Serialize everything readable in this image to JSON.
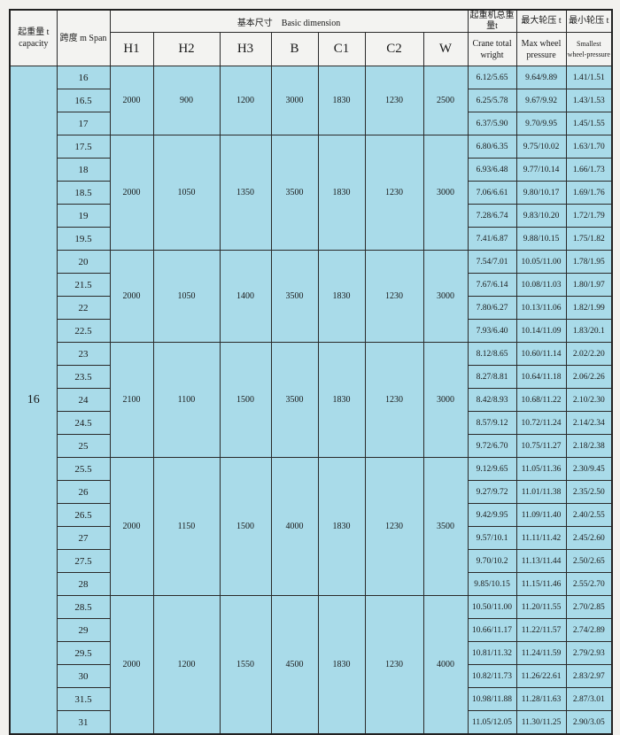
{
  "header": {
    "capacity": "起重量 t capacity",
    "span": "跨度 m Span",
    "basic_dimension": "基本尺寸　Basic dimension",
    "dims": [
      "H1",
      "H2",
      "H3",
      "B",
      "C1",
      "C2",
      "W"
    ],
    "crane_total_cn": "起重机总重量t",
    "crane_total_en": "Crane total wright",
    "max_wheel_cn": "最大轮压 t",
    "max_wheel_en": "Max wheel pressure",
    "min_wheel_cn": "最小轮压 t",
    "min_wheel_en": "Smallest wheel-pressure"
  },
  "capacity": "16",
  "groups": [
    {
      "dims": [
        "2000",
        "900",
        "1200",
        "3000",
        "1830",
        "1230",
        "2500"
      ],
      "rows": [
        [
          "16",
          "6.12/5.65",
          "9.64/9.89",
          "1.41/1.51"
        ],
        [
          "16.5",
          "6.25/5.78",
          "9.67/9.92",
          "1.43/1.53"
        ],
        [
          "17",
          "6.37/5.90",
          "9.70/9.95",
          "1.45/1.55"
        ]
      ]
    },
    {
      "dims": [
        "2000",
        "1050",
        "1350",
        "3500",
        "1830",
        "1230",
        "3000"
      ],
      "rows": [
        [
          "17.5",
          "6.80/6.35",
          "9.75/10.02",
          "1.63/1.70"
        ],
        [
          "18",
          "6.93/6.48",
          "9.77/10.14",
          "1.66/1.73"
        ],
        [
          "18.5",
          "7.06/6.61",
          "9.80/10.17",
          "1.69/1.76"
        ],
        [
          "19",
          "7.28/6.74",
          "9.83/10.20",
          "1.72/1.79"
        ],
        [
          "19.5",
          "7.41/6.87",
          "9.88/10.15",
          "1.75/1.82"
        ]
      ]
    },
    {
      "dims": [
        "2000",
        "1050",
        "1400",
        "3500",
        "1830",
        "1230",
        "3000"
      ],
      "rows": [
        [
          "20",
          "7.54/7.01",
          "10.05/11.00",
          "1.78/1.95"
        ],
        [
          "21.5",
          "7.67/6.14",
          "10.08/11.03",
          "1.80/1.97"
        ],
        [
          "22",
          "7.80/6.27",
          "10.13/11.06",
          "1.82/1.99"
        ],
        [
          "22.5",
          "7.93/6.40",
          "10.14/11.09",
          "1.83/20.1"
        ]
      ]
    },
    {
      "dims": [
        "2100",
        "1100",
        "1500",
        "3500",
        "1830",
        "1230",
        "3000"
      ],
      "rows": [
        [
          "23",
          "8.12/8.65",
          "10.60/11.14",
          "2.02/2.20"
        ],
        [
          "23.5",
          "8.27/8.81",
          "10.64/11.18",
          "2.06/2.26"
        ],
        [
          "24",
          "8.42/8.93",
          "10.68/11.22",
          "2.10/2.30"
        ],
        [
          "24.5",
          "8.57/9.12",
          "10.72/11.24",
          "2.14/2.34"
        ],
        [
          "25",
          "9.72/6.70",
          "10.75/11.27",
          "2.18/2.38"
        ]
      ]
    },
    {
      "dims": [
        "2000",
        "1150",
        "1500",
        "4000",
        "1830",
        "1230",
        "3500"
      ],
      "rows": [
        [
          "25.5",
          "9.12/9.65",
          "11.05/11.36",
          "2.30/9.45"
        ],
        [
          "26",
          "9.27/9.72",
          "11.01/11.38",
          "2.35/2.50"
        ],
        [
          "26.5",
          "9.42/9.95",
          "11.09/11.40",
          "2.40/2.55"
        ],
        [
          "27",
          "9.57/10.1",
          "11.11/11.42",
          "2.45/2.60"
        ],
        [
          "27.5",
          "9.70/10.2",
          "11.13/11.44",
          "2.50/2.65"
        ],
        [
          "28",
          "9.85/10.15",
          "11.15/11.46",
          "2.55/2.70"
        ]
      ]
    },
    {
      "dims": [
        "2000",
        "1200",
        "1550",
        "4500",
        "1830",
        "1230",
        "4000"
      ],
      "rows": [
        [
          "28.5",
          "10.50/11.00",
          "11.20/11.55",
          "2.70/2.85"
        ],
        [
          "29",
          "10.66/11.17",
          "11.22/11.57",
          "2.74/2.89"
        ],
        [
          "29.5",
          "10.81/11.32",
          "11.24/11.59",
          "2.79/2.93"
        ],
        [
          "30",
          "10.82/11.73",
          "11.26/22.61",
          "2.83/2.97"
        ],
        [
          "31.5",
          "10.98/11.88",
          "11.28/11.63",
          "2.87/3.01"
        ],
        [
          "31",
          "11.05/12.05",
          "11.30/11.25",
          "2.90/3.05"
        ]
      ]
    }
  ],
  "colors": {
    "cell_bg": "#a9dbe9",
    "header_bg": "#f3f3f1",
    "border": "#2a2a2a"
  }
}
